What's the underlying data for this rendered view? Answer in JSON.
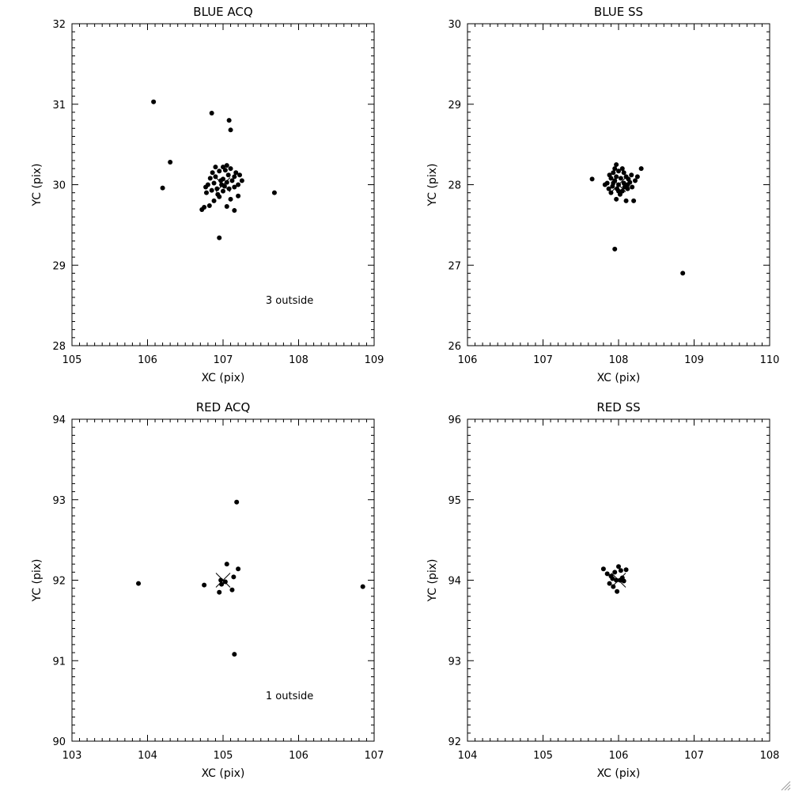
{
  "colors": {
    "background": "#ffffff",
    "ink": "#000000"
  },
  "chart_data": [
    {
      "type": "scatter",
      "title": "BLUE ACQ",
      "xlabel": "XC (pix)",
      "ylabel": "YC (pix)",
      "xlim": [
        105,
        109
      ],
      "ylim": [
        28,
        32
      ],
      "xticks": [
        105,
        106,
        107,
        108,
        109
      ],
      "yticks": [
        28,
        29,
        30,
        31,
        32
      ],
      "grid": false,
      "annotation": "3 outside",
      "target_marker": [
        107,
        30
      ],
      "points": [
        [
          106.08,
          31.03
        ],
        [
          106.85,
          30.89
        ],
        [
          107.08,
          30.8
        ],
        [
          107.1,
          30.68
        ],
        [
          106.3,
          30.28
        ],
        [
          106.2,
          29.96
        ],
        [
          107.68,
          29.9
        ],
        [
          106.95,
          29.34
        ],
        [
          106.75,
          29.72
        ],
        [
          106.72,
          29.69
        ],
        [
          107.15,
          29.68
        ],
        [
          106.82,
          29.74
        ],
        [
          107.05,
          29.73
        ],
        [
          106.88,
          29.8
        ],
        [
          106.95,
          29.85
        ],
        [
          107.1,
          29.82
        ],
        [
          107.2,
          29.86
        ],
        [
          106.78,
          29.9
        ],
        [
          106.85,
          29.93
        ],
        [
          106.92,
          29.95
        ],
        [
          107.0,
          29.92
        ],
        [
          107.08,
          29.95
        ],
        [
          107.15,
          29.97
        ],
        [
          106.8,
          30.0
        ],
        [
          106.88,
          30.02
        ],
        [
          106.98,
          30.0
        ],
        [
          107.05,
          30.03
        ],
        [
          107.12,
          30.05
        ],
        [
          107.2,
          30.0
        ],
        [
          106.83,
          30.08
        ],
        [
          106.9,
          30.1
        ],
        [
          107.0,
          30.07
        ],
        [
          107.07,
          30.12
        ],
        [
          107.15,
          30.1
        ],
        [
          107.22,
          30.12
        ],
        [
          106.86,
          30.15
        ],
        [
          106.95,
          30.17
        ],
        [
          107.03,
          30.18
        ],
        [
          107.1,
          30.2
        ],
        [
          106.9,
          30.22
        ],
        [
          107.0,
          30.22
        ],
        [
          107.05,
          30.24
        ],
        [
          106.97,
          30.05
        ],
        [
          107.02,
          29.98
        ],
        [
          106.93,
          29.88
        ],
        [
          107.17,
          30.15
        ],
        [
          107.25,
          30.05
        ],
        [
          106.77,
          29.97
        ]
      ]
    },
    {
      "type": "scatter",
      "title": "BLUE SS",
      "xlabel": "XC (pix)",
      "ylabel": "YC (pix)",
      "xlim": [
        106,
        110
      ],
      "ylim": [
        26,
        30
      ],
      "xticks": [
        106,
        107,
        108,
        109,
        110
      ],
      "yticks": [
        26,
        27,
        28,
        29,
        30
      ],
      "grid": false,
      "annotation": "",
      "target_marker": [
        108,
        28
      ],
      "points": [
        [
          107.65,
          28.07
        ],
        [
          107.95,
          27.2
        ],
        [
          108.85,
          26.9
        ],
        [
          108.3,
          28.2
        ],
        [
          108.2,
          27.8
        ],
        [
          107.97,
          27.82
        ],
        [
          108.1,
          27.8
        ],
        [
          107.9,
          27.9
        ],
        [
          107.87,
          27.95
        ],
        [
          107.92,
          27.98
        ],
        [
          107.98,
          27.95
        ],
        [
          108.05,
          27.92
        ],
        [
          108.12,
          27.95
        ],
        [
          108.18,
          27.97
        ],
        [
          107.85,
          28.02
        ],
        [
          107.93,
          28.02
        ],
        [
          108.0,
          28.0
        ],
        [
          108.07,
          28.02
        ],
        [
          108.15,
          28.03
        ],
        [
          108.22,
          28.05
        ],
        [
          107.9,
          28.08
        ],
        [
          107.97,
          28.1
        ],
        [
          108.03,
          28.08
        ],
        [
          108.1,
          28.1
        ],
        [
          108.17,
          28.12
        ],
        [
          107.93,
          28.15
        ],
        [
          108.0,
          28.17
        ],
        [
          108.07,
          28.15
        ],
        [
          107.95,
          28.2
        ],
        [
          107.97,
          28.25
        ],
        [
          108.05,
          28.2
        ],
        [
          108.02,
          27.88
        ],
        [
          108.08,
          27.97
        ],
        [
          107.95,
          28.05
        ],
        [
          108.12,
          28.0
        ],
        [
          107.82,
          28.0
        ],
        [
          108.25,
          28.1
        ],
        [
          108.0,
          27.92
        ],
        [
          108.13,
          28.07
        ],
        [
          107.88,
          28.12
        ]
      ]
    },
    {
      "type": "scatter",
      "title": "RED ACQ",
      "xlabel": "XC (pix)",
      "ylabel": "YC (pix)",
      "xlim": [
        103,
        107
      ],
      "ylim": [
        90,
        94
      ],
      "xticks": [
        103,
        104,
        105,
        106,
        107
      ],
      "yticks": [
        90,
        91,
        92,
        93,
        94
      ],
      "grid": false,
      "annotation": "1 outside",
      "target_marker": [
        105,
        92
      ],
      "points": [
        [
          105.18,
          92.97
        ],
        [
          103.88,
          91.96
        ],
        [
          106.85,
          91.92
        ],
        [
          105.15,
          91.08
        ],
        [
          105.05,
          92.2
        ],
        [
          105.2,
          92.14
        ],
        [
          104.75,
          91.94
        ],
        [
          104.95,
          91.85
        ],
        [
          105.14,
          92.04
        ],
        [
          105.12,
          91.88
        ],
        [
          104.97,
          92.0
        ],
        [
          105.03,
          91.98
        ],
        [
          104.98,
          91.95
        ]
      ]
    },
    {
      "type": "scatter",
      "title": "RED SS",
      "xlabel": "XC (pix)",
      "ylabel": "YC (pix)",
      "xlim": [
        104,
        108
      ],
      "ylim": [
        92,
        96
      ],
      "xticks": [
        104,
        105,
        106,
        107,
        108
      ],
      "yticks": [
        92,
        93,
        94,
        95,
        96
      ],
      "grid": false,
      "annotation": "",
      "target_marker": [
        106,
        94
      ],
      "points": [
        [
          105.8,
          94.14
        ],
        [
          105.85,
          94.08
        ],
        [
          105.9,
          94.05
        ],
        [
          105.95,
          94.1
        ],
        [
          106.0,
          94.17
        ],
        [
          106.03,
          94.12
        ],
        [
          106.1,
          94.13
        ],
        [
          105.88,
          93.96
        ],
        [
          105.93,
          93.92
        ],
        [
          105.97,
          94.0
        ],
        [
          106.02,
          94.0
        ],
        [
          106.07,
          93.99
        ],
        [
          105.98,
          93.86
        ],
        [
          106.05,
          94.03
        ],
        [
          105.92,
          94.02
        ]
      ]
    }
  ]
}
